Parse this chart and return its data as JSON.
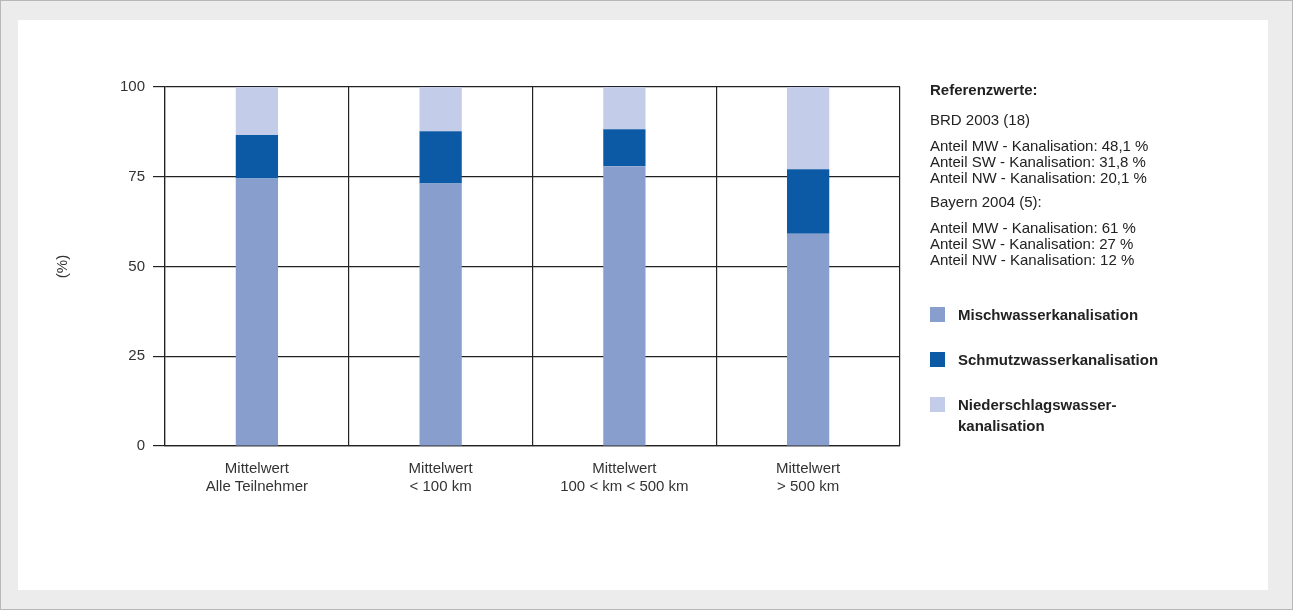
{
  "chart_data": {
    "type": "bar",
    "stacked": true,
    "ylabel": "(%)",
    "categories": [
      "Mittelwert\nAlle Teilnehmer",
      "Mittelwert\n< 100 km",
      "Mittelwert\n100 < km < 500 km",
      "Mittelwert\n> 500 km"
    ],
    "series": [
      {
        "name": "Mischwasserkanalisation",
        "color": "#889fce",
        "values": [
          74.5,
          73.1,
          77.9,
          59.1
        ]
      },
      {
        "name": "Schmutzwasserkanalisation",
        "color": "#0c5aa6",
        "values": [
          12.1,
          14.6,
          10.3,
          18.0
        ]
      },
      {
        "name": "Niederschlagswasser-\nkanalisation",
        "color": "#c3cce8",
        "values": [
          13.4,
          12.3,
          11.8,
          22.9
        ]
      }
    ],
    "ylim": [
      0,
      100
    ],
    "yticks": [
      0,
      25,
      50,
      75,
      100
    ],
    "grid": true,
    "legend": "right",
    "annotations": [
      "Referenzwerte:",
      "BRD 2003 (18)",
      "Anteil MW - Kanalisation: 48,1 %\nAnteil SW - Kanalisation: 31,8 %\nAnteil NW - Kanalisation: 20,1 %",
      "Bayern 2004 (5):",
      "Anteil MW - Kanalisation: 61 %\nAnteil SW - Kanalisation: 27 %\nAnteil NW - Kanalisation: 12 %"
    ]
  }
}
